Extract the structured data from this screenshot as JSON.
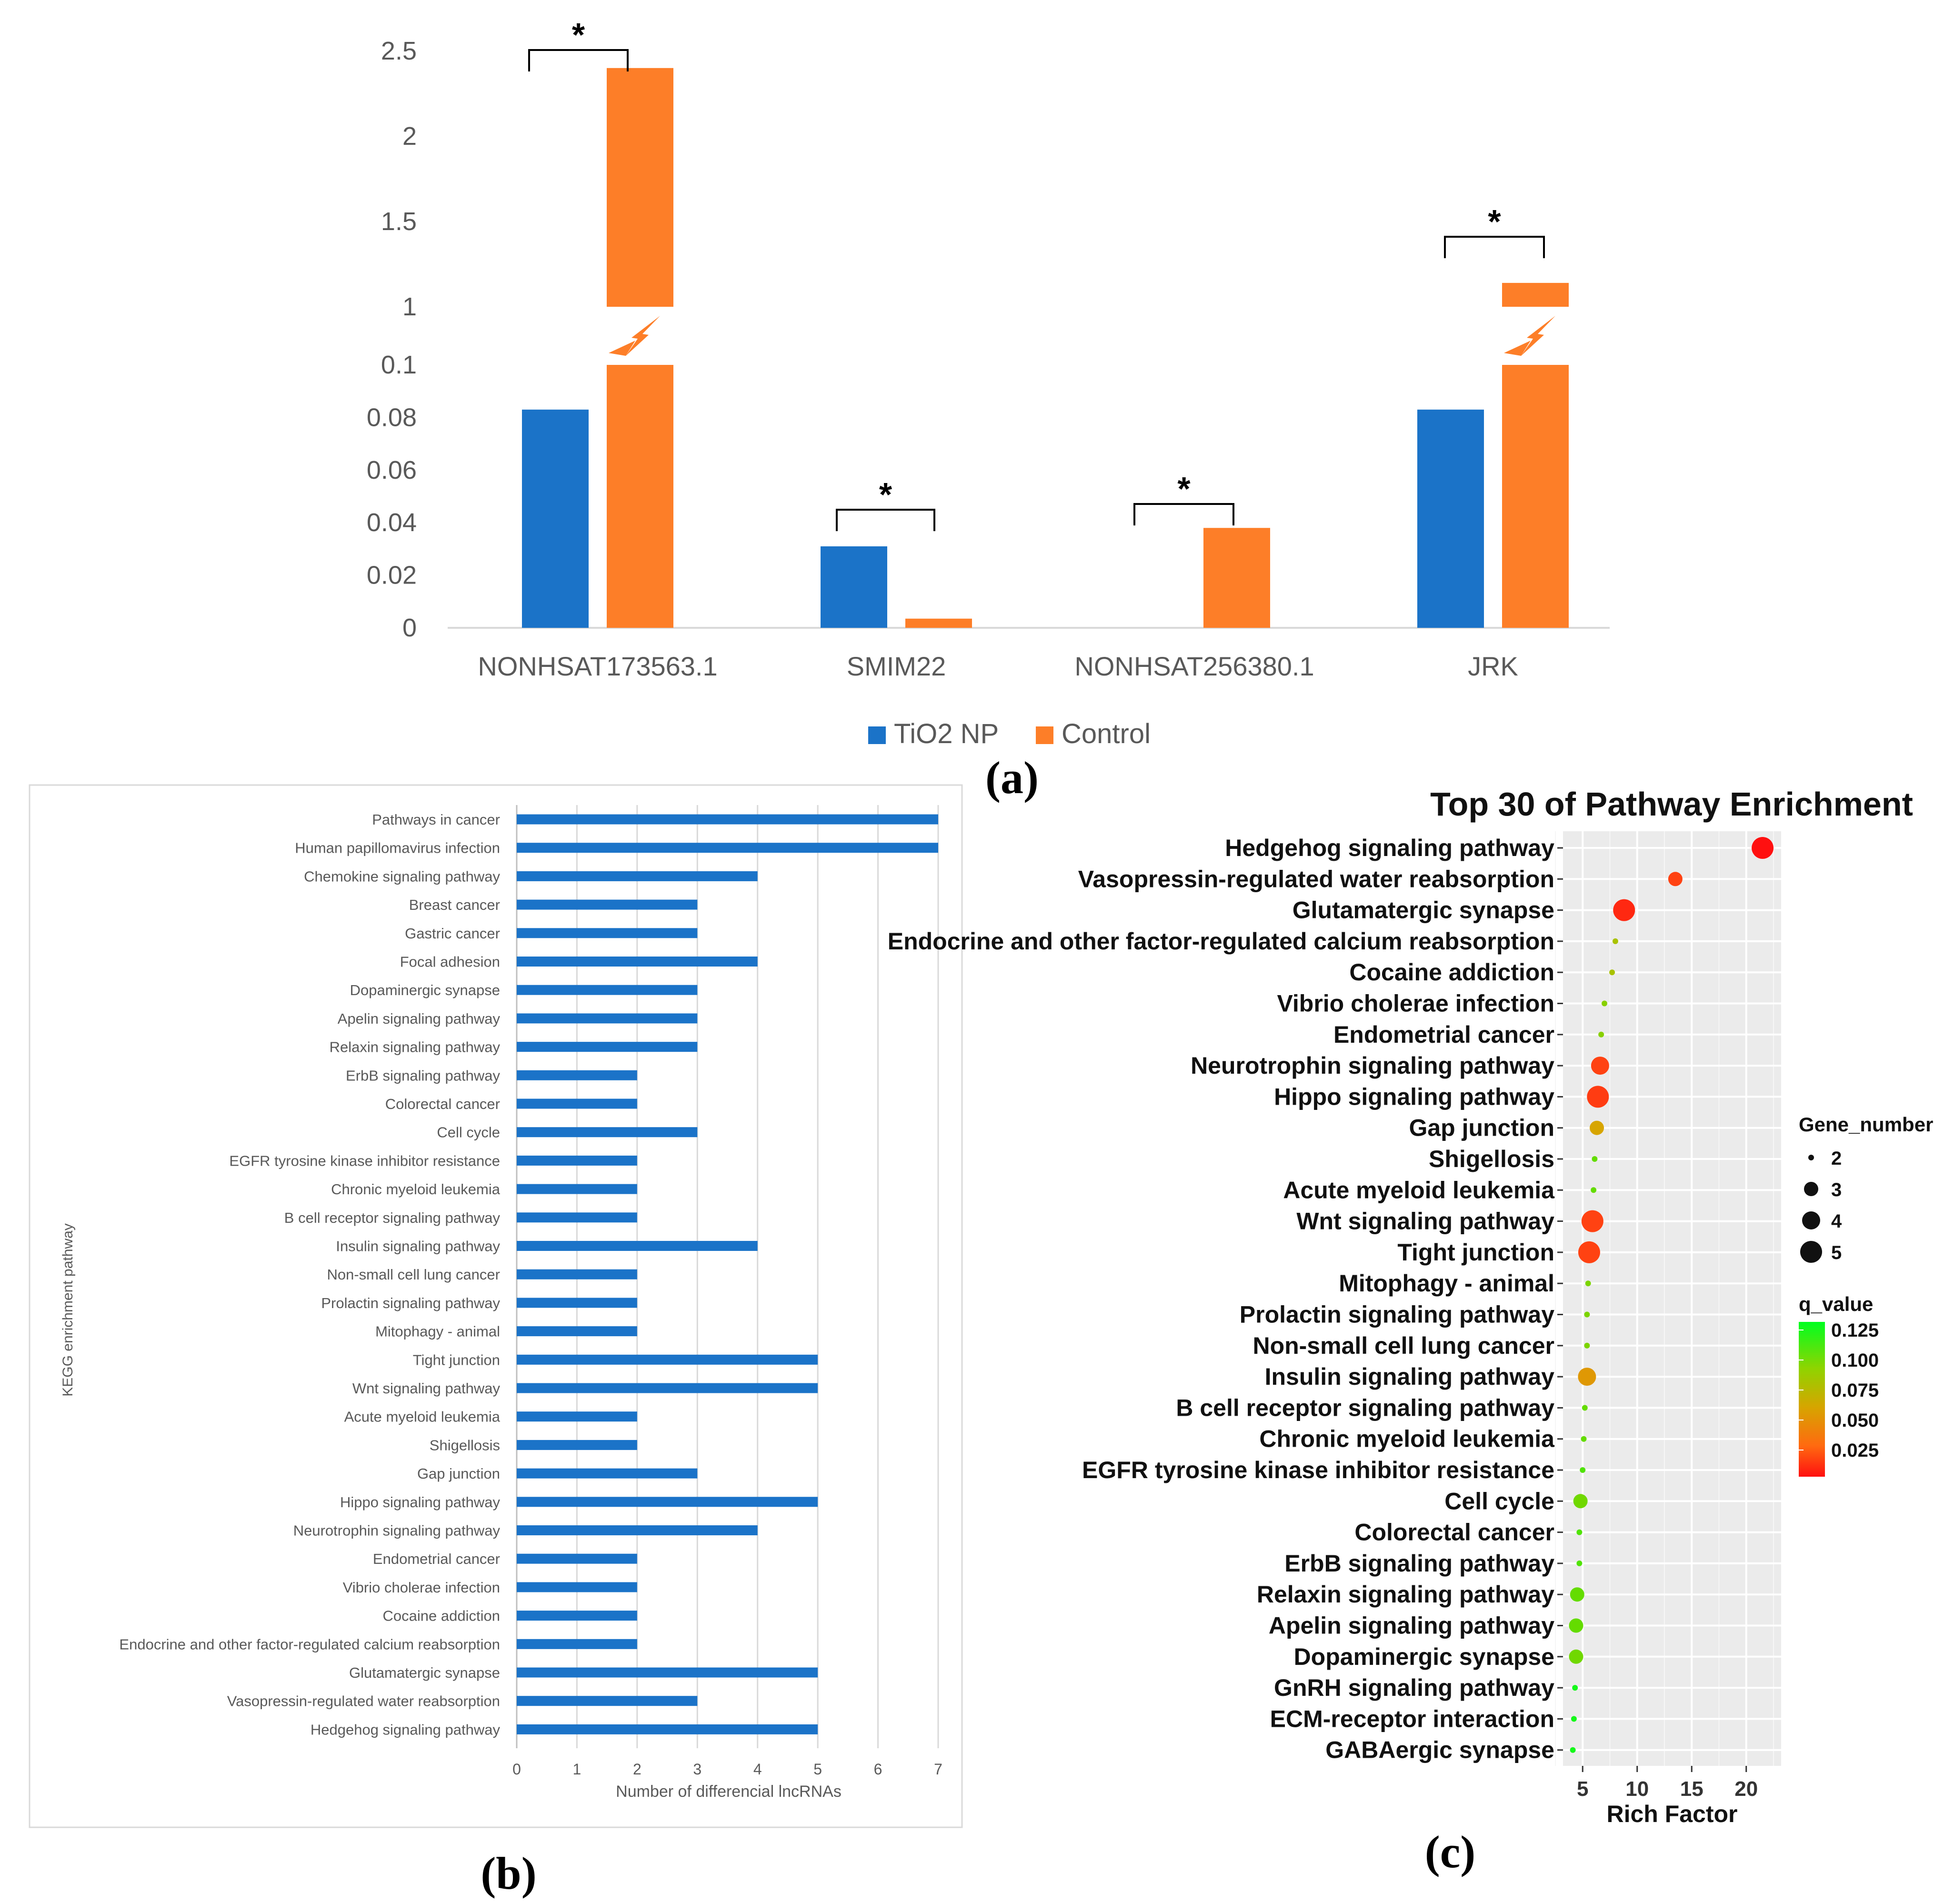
{
  "chart_data": [
    {
      "panel": "(a)",
      "type": "bar",
      "title": "",
      "xlabel": "",
      "ylabel": "",
      "axis_break": true,
      "y_ticks_lower": [
        "0",
        "0.02",
        "0.04",
        "0.06",
        "0.08",
        "0.1"
      ],
      "y_ticks_upper": [
        "1",
        "1.5",
        "2",
        "2.5"
      ],
      "ylim_lower": [
        0,
        0.1
      ],
      "ylim_upper": [
        1,
        2.5
      ],
      "categories": [
        "NONHSAT173563.1",
        "SMIM22",
        "NONHSAT256380.1",
        "JRK"
      ],
      "series": [
        {
          "name": "TiO2 NP",
          "color": "#1b73c8",
          "values": [
            0.083,
            0.031,
            0,
            0.083
          ]
        },
        {
          "name": "Control",
          "color": "#fd7e28",
          "values": [
            2.4,
            0.0035,
            0.038,
            1.14
          ]
        }
      ],
      "significance": [
        "*",
        "*",
        "*",
        "*"
      ],
      "legend_position": "bottom"
    },
    {
      "panel": "(b)",
      "type": "bar",
      "orientation": "horizontal",
      "title": "",
      "xlabel": "Number of differencial lncRNAs",
      "ylabel": "KEGG enrichment pathway",
      "xlim": [
        0,
        7
      ],
      "x_ticks": [
        "0",
        "1",
        "2",
        "3",
        "4",
        "5",
        "6",
        "7"
      ],
      "color": "#1b73c8",
      "categories": [
        "Pathways in cancer",
        "Human papillomavirus infection",
        "Chemokine signaling pathway",
        "Breast cancer",
        "Gastric cancer",
        "Focal adhesion",
        "Dopaminergic synapse",
        "Apelin signaling pathway",
        "Relaxin signaling pathway",
        "ErbB signaling pathway",
        "Colorectal cancer",
        "Cell cycle",
        "EGFR tyrosine kinase inhibitor resistance",
        "Chronic myeloid leukemia",
        "B cell receptor signaling pathway",
        "Insulin signaling pathway",
        "Non-small cell lung cancer",
        "Prolactin signaling pathway",
        "Mitophagy - animal",
        "Tight junction",
        "Wnt signaling pathway",
        "Acute myeloid leukemia",
        "Shigellosis",
        "Gap junction",
        "Hippo signaling pathway",
        "Neurotrophin signaling pathway",
        "Endometrial cancer",
        "Vibrio cholerae infection",
        "Cocaine addiction",
        "Endocrine and other factor-regulated calcium reabsorption",
        "Glutamatergic synapse",
        "Vasopressin-regulated water reabsorption",
        "Hedgehog signaling pathway"
      ],
      "values": [
        7,
        7,
        4,
        3,
        3,
        4,
        3,
        3,
        3,
        2,
        2,
        3,
        2,
        2,
        2,
        4,
        2,
        2,
        2,
        5,
        5,
        2,
        2,
        3,
        5,
        4,
        2,
        2,
        2,
        2,
        5,
        3,
        5
      ]
    },
    {
      "panel": "(c)",
      "type": "scatter",
      "title": "Top 30 of Pathway Enrichment",
      "xlabel": "Rich Factor",
      "ylabel": "",
      "xlim": [
        3.2,
        23.2
      ],
      "x_ticks": [
        "5",
        "10",
        "15",
        "20"
      ],
      "categories": [
        "Hedgehog signaling pathway",
        "Vasopressin-regulated water reabsorption",
        "Glutamatergic synapse",
        "Endocrine and other factor-regulated calcium reabsorption",
        "Cocaine addiction",
        "Vibrio cholerae infection",
        "Endometrial cancer",
        "Neurotrophin signaling pathway",
        "Hippo signaling pathway",
        "Gap junction",
        "Shigellosis",
        "Acute myeloid leukemia",
        "Wnt signaling pathway",
        "Tight junction",
        "Mitophagy - animal",
        "Prolactin signaling pathway",
        "Non-small cell lung cancer",
        "Insulin signaling pathway",
        "B cell receptor signaling pathway",
        "Chronic myeloid leukemia",
        "EGFR tyrosine kinase inhibitor resistance",
        "Cell cycle",
        "Colorectal cancer",
        "ErbB signaling pathway",
        "Relaxin signaling pathway",
        "Apelin signaling pathway",
        "Dopaminergic synapse",
        "GnRH signaling pathway",
        "ECM-receptor interaction",
        "GABAergic synapse"
      ],
      "rich_factor": [
        21.5,
        13.5,
        8.8,
        8.0,
        7.7,
        7.0,
        6.7,
        6.6,
        6.4,
        6.3,
        6.1,
        6.0,
        5.9,
        5.6,
        5.5,
        5.4,
        5.4,
        5.4,
        5.2,
        5.1,
        5.0,
        4.8,
        4.7,
        4.7,
        4.5,
        4.4,
        4.4,
        4.3,
        4.2,
        4.1
      ],
      "gene_number": [
        5,
        3,
        5,
        2,
        2,
        2,
        2,
        4,
        5,
        3,
        2,
        2,
        5,
        5,
        2,
        2,
        2,
        4,
        2,
        2,
        2,
        3,
        2,
        2,
        3,
        3,
        3,
        2,
        2,
        2
      ],
      "q_value": [
        0.005,
        0.02,
        0.012,
        0.08,
        0.08,
        0.095,
        0.095,
        0.02,
        0.018,
        0.055,
        0.11,
        0.11,
        0.02,
        0.02,
        0.1,
        0.1,
        0.1,
        0.05,
        0.11,
        0.11,
        0.115,
        0.105,
        0.115,
        0.115,
        0.11,
        0.11,
        0.105,
        0.13,
        0.13,
        0.13
      ],
      "size_legend": {
        "title": "Gene_number",
        "labels": [
          "2",
          "3",
          "4",
          "5"
        ]
      },
      "color_legend": {
        "title": "q_value",
        "labels": [
          "0.125",
          "0.100",
          "0.075",
          "0.050",
          "0.025"
        ]
      }
    }
  ]
}
